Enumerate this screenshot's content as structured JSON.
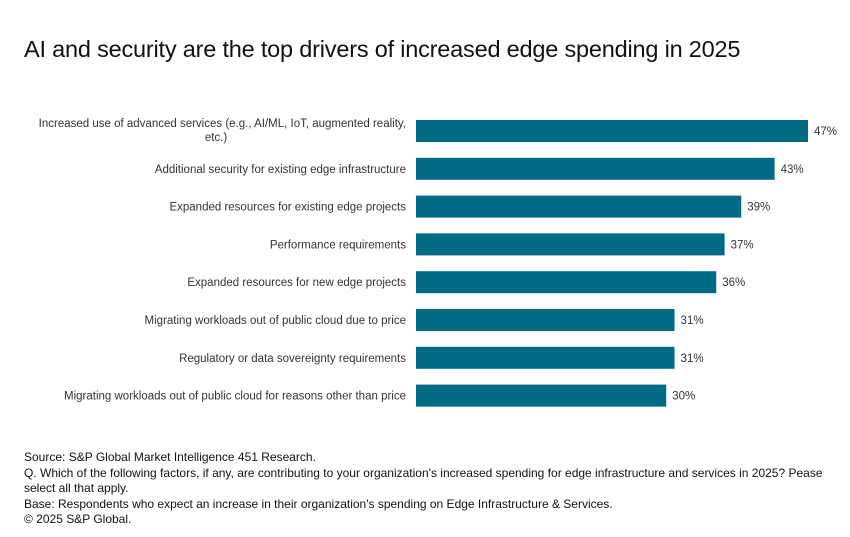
{
  "chart_data": {
    "type": "bar",
    "orientation": "horizontal",
    "title": "AI and security are the top drivers of increased edge spending in 2025",
    "xlabel": "",
    "ylabel": "",
    "xlim": [
      0,
      50
    ],
    "grid": false,
    "legend": null,
    "bar_color": "#006B85",
    "categories": [
      [
        "Increased use of advanced services (e.g., AI/ML, IoT, augmented reality,",
        "etc.)"
      ],
      [
        "Additional security for existing edge infrastructure"
      ],
      [
        "Expanded resources for existing edge projects"
      ],
      [
        "Performance requirements"
      ],
      [
        "Expanded resources for new edge projects"
      ],
      [
        "Migrating workloads out of public cloud due to price"
      ],
      [
        "Regulatory or data sovereignty requirements"
      ],
      [
        "Migrating workloads out of public cloud for reasons other than price"
      ]
    ],
    "values": [
      47,
      43,
      39,
      37,
      36,
      31,
      31,
      30
    ],
    "value_labels": [
      "47%",
      "43%",
      "39%",
      "37%",
      "36%",
      "31%",
      "31%",
      "30%"
    ]
  },
  "footer": {
    "source": "Source: S&P Global Market Intelligence 451 Research.",
    "question": "Q. Which of the following factors, if any, are contributing to your organization's increased spending for edge infrastructure and services in 2025? Pease select all that apply.",
    "base": "Base: Respondents who expect an increase in their organization's spending on Edge Infrastructure & Services.",
    "copyright": "© 2025 S&P Global."
  }
}
